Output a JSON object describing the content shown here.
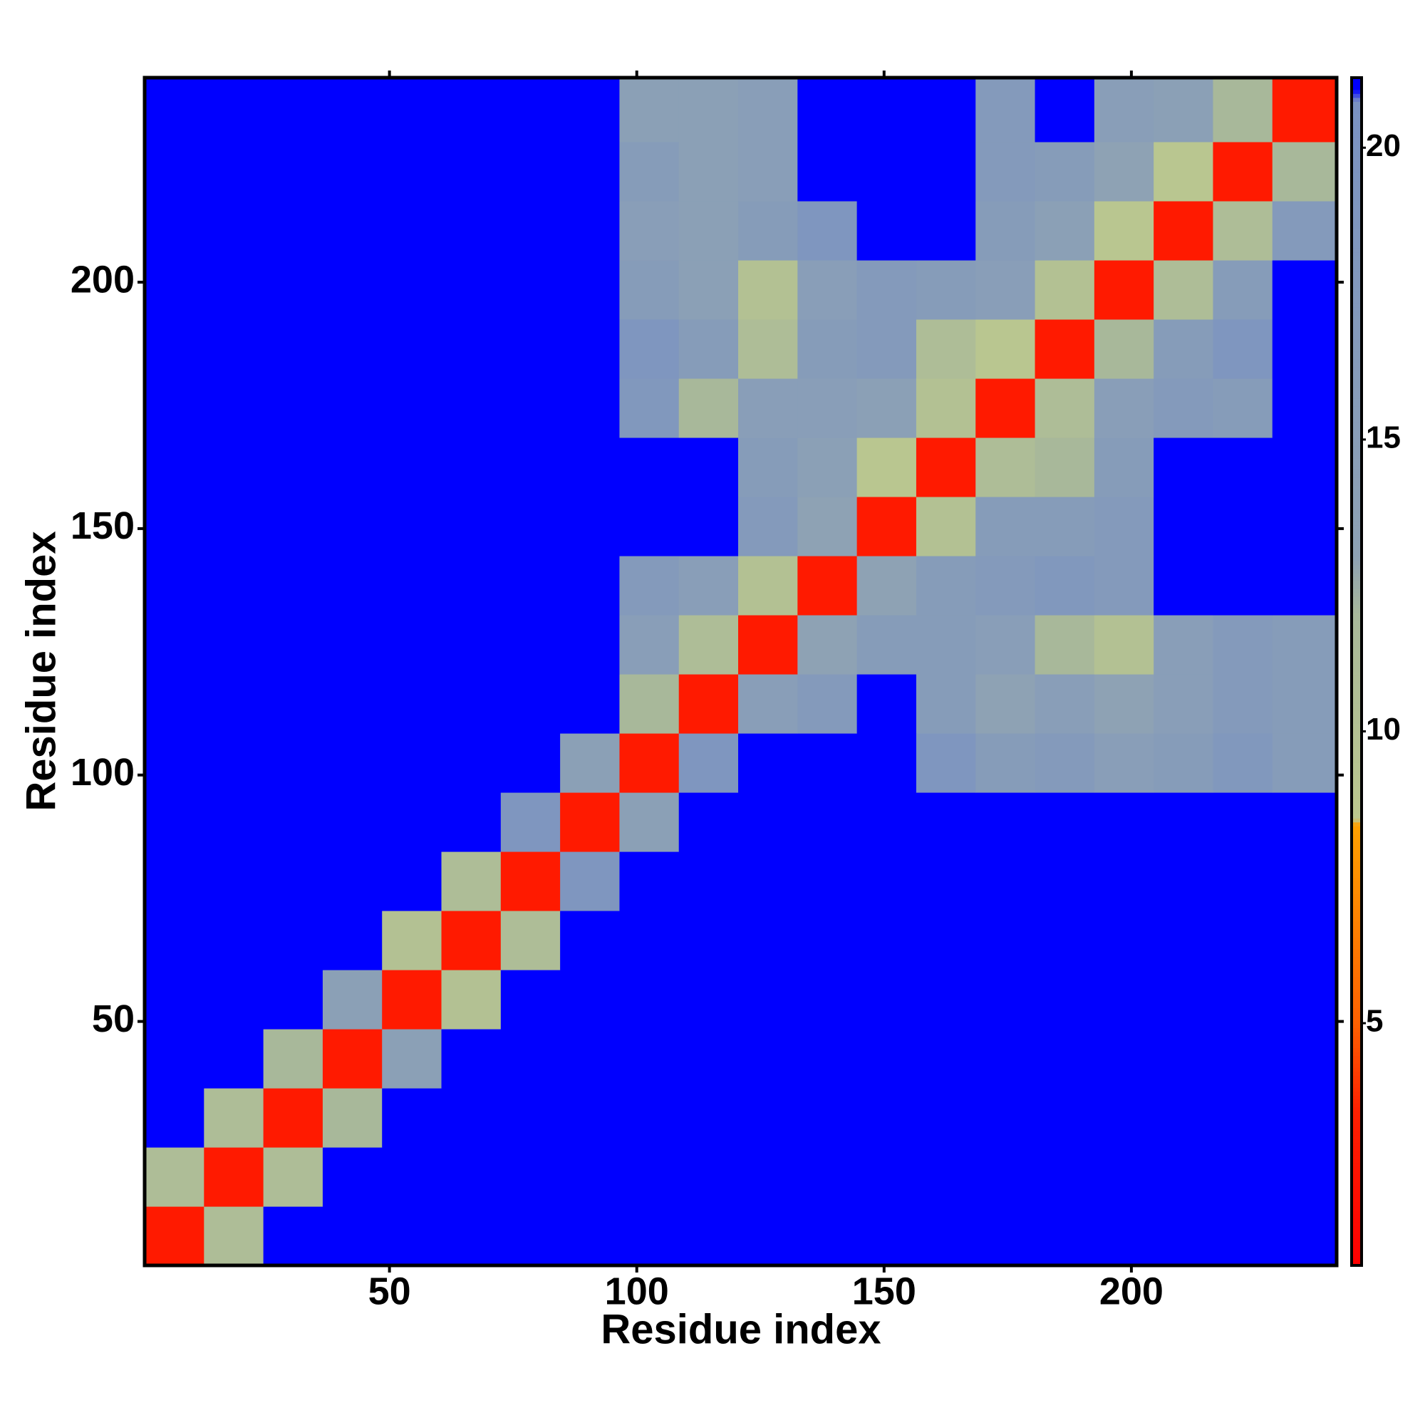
{
  "chart_data": {
    "type": "heatmap",
    "xlabel": "Residue index",
    "ylabel": "Residue index",
    "xbins": [
      0.5,
      12.5,
      24.5,
      36.5,
      48.5,
      60.5,
      72.5,
      84.5,
      96.5,
      108.5,
      120.5,
      132.5,
      144.5,
      156.5,
      168.5,
      180.5,
      192.5,
      204.5,
      216.5,
      228.5,
      241.5
    ],
    "ybins": [
      0.5,
      12.5,
      24.5,
      36.5,
      48.5,
      60.5,
      72.5,
      84.5,
      96.5,
      108.5,
      120.5,
      132.5,
      144.5,
      156.5,
      168.5,
      180.5,
      192.5,
      204.5,
      216.5,
      228.5,
      241.5
    ],
    "z": [
      [
        3,
        11,
        21,
        21,
        21,
        21,
        21,
        21,
        21,
        21,
        21,
        21,
        21,
        21,
        21,
        21,
        21,
        21,
        21,
        21
      ],
      [
        11,
        3,
        11,
        21,
        21,
        21,
        21,
        21,
        21,
        21,
        21,
        21,
        21,
        21,
        21,
        21,
        21,
        21,
        21,
        21
      ],
      [
        21,
        11,
        3,
        12,
        21,
        21,
        21,
        21,
        21,
        21,
        21,
        21,
        21,
        21,
        21,
        21,
        21,
        21,
        21,
        21
      ],
      [
        21,
        21,
        12,
        3,
        14,
        21,
        21,
        21,
        21,
        21,
        21,
        21,
        21,
        21,
        21,
        21,
        21,
        21,
        21,
        21
      ],
      [
        21,
        21,
        21,
        14,
        3,
        10,
        21,
        21,
        21,
        21,
        21,
        21,
        21,
        21,
        21,
        21,
        21,
        21,
        21,
        21
      ],
      [
        21,
        21,
        21,
        21,
        10,
        3,
        11,
        21,
        21,
        21,
        21,
        21,
        21,
        21,
        21,
        21,
        21,
        21,
        21,
        21
      ],
      [
        21,
        21,
        21,
        21,
        21,
        11,
        3,
        19,
        21,
        21,
        21,
        21,
        21,
        21,
        21,
        21,
        21,
        21,
        21,
        21
      ],
      [
        21,
        21,
        21,
        21,
        21,
        21,
        19,
        3,
        14,
        21,
        21,
        21,
        21,
        21,
        21,
        21,
        21,
        21,
        21,
        21
      ],
      [
        21,
        21,
        21,
        21,
        21,
        21,
        21,
        14,
        3,
        19,
        21,
        21,
        21,
        19,
        16,
        17,
        15,
        16,
        18,
        16
      ],
      [
        21,
        21,
        21,
        21,
        21,
        21,
        21,
        21,
        12,
        3,
        15,
        17,
        21,
        16,
        13,
        15,
        13,
        15,
        17,
        16
      ],
      [
        21,
        21,
        21,
        21,
        21,
        21,
        21,
        21,
        15,
        11,
        3,
        13,
        16,
        16,
        15,
        12,
        10,
        15,
        17,
        16
      ],
      [
        21,
        21,
        21,
        21,
        21,
        21,
        21,
        21,
        17,
        15,
        10,
        3,
        13,
        16,
        17,
        18,
        17,
        21,
        21,
        21
      ],
      [
        21,
        21,
        21,
        21,
        21,
        21,
        21,
        21,
        21,
        21,
        17,
        13,
        3,
        10,
        16,
        16,
        17,
        21,
        21,
        21
      ],
      [
        21,
        21,
        21,
        21,
        21,
        21,
        21,
        21,
        21,
        21,
        16,
        14,
        9,
        3,
        11,
        12,
        16,
        21,
        21,
        21
      ],
      [
        21,
        21,
        21,
        21,
        21,
        21,
        21,
        21,
        18,
        12,
        15,
        15,
        14,
        10,
        3,
        11,
        15,
        17,
        16,
        21
      ],
      [
        21,
        21,
        21,
        21,
        21,
        21,
        21,
        21,
        19,
        16,
        11,
        16,
        17,
        11,
        9,
        3,
        12,
        16,
        19,
        21
      ],
      [
        21,
        21,
        21,
        21,
        21,
        21,
        21,
        21,
        16,
        14,
        10,
        15,
        17,
        16,
        15,
        10,
        3,
        11,
        16,
        21
      ],
      [
        21,
        21,
        21,
        21,
        21,
        21,
        21,
        21,
        15,
        14,
        16,
        19,
        21,
        21,
        16,
        14,
        9,
        3,
        11,
        17
      ],
      [
        21,
        21,
        21,
        21,
        21,
        21,
        21,
        21,
        16,
        14,
        15,
        21,
        21,
        21,
        17,
        16,
        13,
        9,
        3,
        12
      ],
      [
        21,
        21,
        21,
        21,
        21,
        21,
        21,
        21,
        14,
        14,
        15,
        21,
        21,
        21,
        17,
        21,
        15,
        14,
        12,
        3
      ]
    ],
    "xlim": [
      0.5,
      241.5
    ],
    "ylim": [
      0.5,
      241.5
    ],
    "xticks": [
      50,
      100,
      150,
      200
    ],
    "yticks": [
      50,
      100,
      150,
      200
    ],
    "clim": [
      0.85,
      21.2
    ],
    "cticks": [
      5,
      10,
      15,
      20
    ],
    "colorscale": [
      [
        0.85,
        "#ff0000"
      ],
      [
        3.5,
        "#ff2000"
      ],
      [
        5,
        "#ff6000"
      ],
      [
        8.4,
        "#ffa000"
      ],
      [
        8.5,
        "#bcc88e"
      ],
      [
        12,
        "#a8b89a"
      ],
      [
        13,
        "#8ea2b4"
      ],
      [
        20.8,
        "#7a92c2"
      ],
      [
        21,
        "#0000ff"
      ],
      [
        21.2,
        "#0000ff"
      ]
    ]
  }
}
